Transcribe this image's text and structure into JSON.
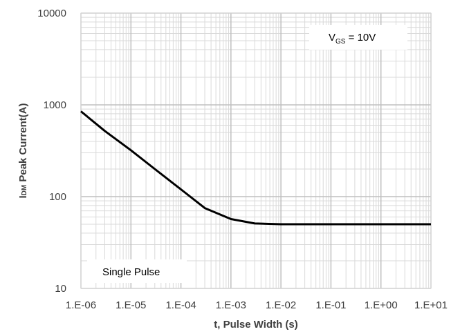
{
  "chart_data": {
    "type": "line",
    "xscale": "log",
    "yscale": "log",
    "xlim": [
      1e-06,
      10
    ],
    "ylim": [
      10,
      10000
    ],
    "grid": true,
    "xlabel": "t, Pulse Width (s)",
    "ylabel": {
      "prefix": "I",
      "subscript": "DM",
      "suffix": " Peak Current(A)"
    },
    "xticks": [
      {
        "value": 1e-06,
        "label": "1.E-06"
      },
      {
        "value": 1e-05,
        "label": "1.E-05"
      },
      {
        "value": 0.0001,
        "label": "1.E-04"
      },
      {
        "value": 0.001,
        "label": "1.E-03"
      },
      {
        "value": 0.01,
        "label": "1.E-02"
      },
      {
        "value": 0.1,
        "label": "1.E-01"
      },
      {
        "value": 1,
        "label": "1.E+00"
      },
      {
        "value": 10,
        "label": "1.E+01"
      }
    ],
    "yticks": [
      {
        "value": 10,
        "label": "10"
      },
      {
        "value": 100,
        "label": "100"
      },
      {
        "value": 1000,
        "label": "1000"
      },
      {
        "value": 10000,
        "label": "10000"
      }
    ],
    "annotations": {
      "condition": {
        "prefix": "V",
        "subscript": "GS",
        "suffix": " = 10V"
      },
      "note": "Single Pulse"
    },
    "series": [
      {
        "color": "#000000",
        "points": [
          [
            1e-06,
            850
          ],
          [
            3e-06,
            520
          ],
          [
            1e-05,
            320
          ],
          [
            3e-05,
            200
          ],
          [
            0.0001,
            120
          ],
          [
            0.0003,
            75
          ],
          [
            0.001,
            57
          ],
          [
            0.003,
            51
          ],
          [
            0.01,
            50
          ],
          [
            0.1,
            50
          ],
          [
            1,
            50
          ],
          [
            10,
            50
          ]
        ]
      }
    ]
  }
}
